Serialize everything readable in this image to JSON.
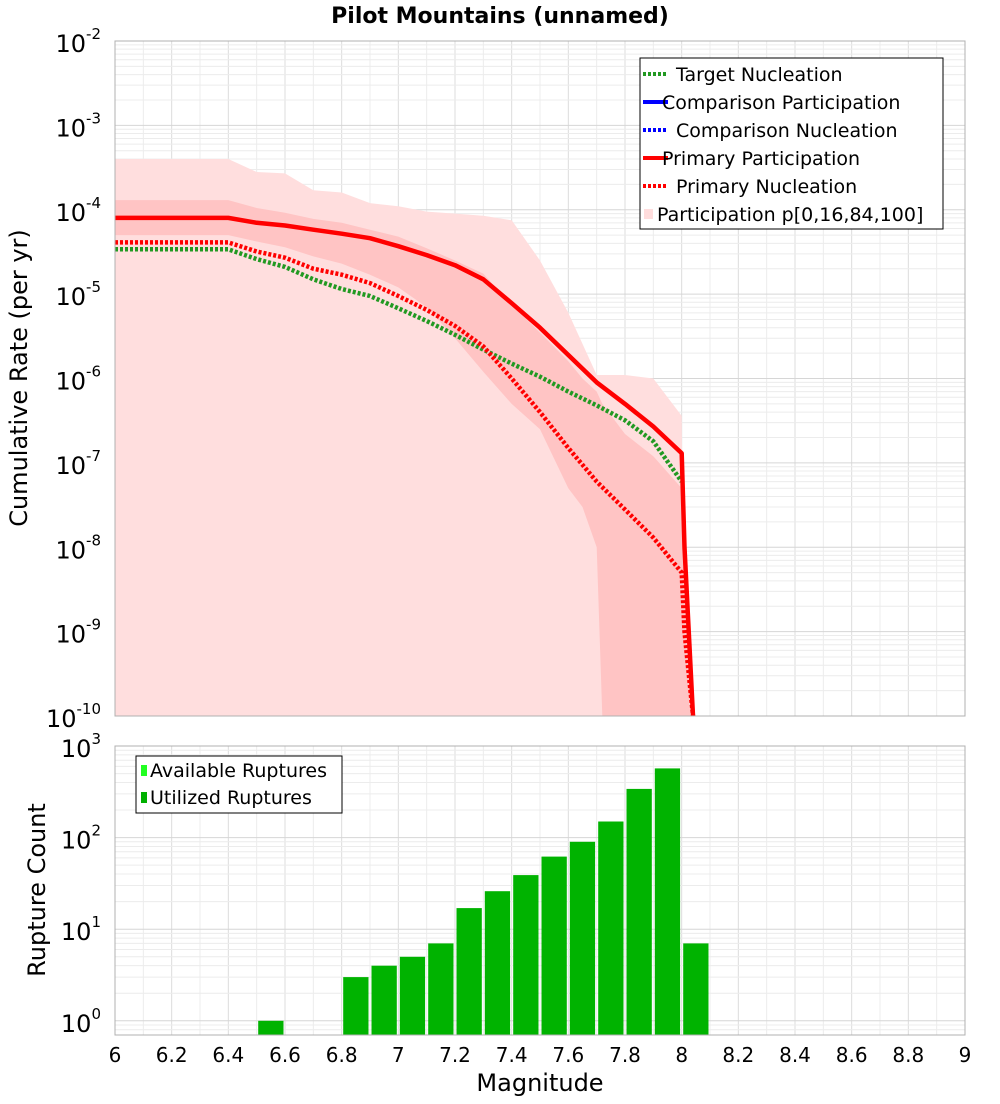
{
  "chart_data": [
    {
      "type": "line",
      "title": "Pilot Mountains (unnamed)",
      "xlabel": "",
      "ylabel": "Cumulative Rate (per yr)",
      "yscale": "log",
      "xlim": [
        6,
        9
      ],
      "ylim": [
        1e-10,
        0.01
      ],
      "y_ticks": [
        {
          "base": "10",
          "exp": "-10"
        },
        {
          "base": "10",
          "exp": "-9"
        },
        {
          "base": "10",
          "exp": "-8"
        },
        {
          "base": "10",
          "exp": "-7"
        },
        {
          "base": "10",
          "exp": "-6"
        },
        {
          "base": "10",
          "exp": "-5"
        },
        {
          "base": "10",
          "exp": "-4"
        },
        {
          "base": "10",
          "exp": "-3"
        },
        {
          "base": "10",
          "exp": "-2"
        }
      ],
      "legend": {
        "position": "top-right",
        "entries": [
          {
            "label": "Target Nucleation",
            "color": "#229922",
            "style": "dotted"
          },
          {
            "label": "Comparison Participation",
            "color": "#0000ff",
            "style": "solid"
          },
          {
            "label": "Comparison Nucleation",
            "color": "#0000ff",
            "style": "dotted"
          },
          {
            "label": "Primary Participation",
            "color": "#ff0000",
            "style": "solid"
          },
          {
            "label": "Primary Nucleation",
            "color": "#ff0000",
            "style": "dotted"
          },
          {
            "label": "Participation p[0,16,84,100]",
            "color": "#ffdddd",
            "style": "band"
          }
        ]
      },
      "bands": [
        {
          "name": "Participation p[0,100]",
          "color": "#ffdede",
          "x": [
            6.0,
            6.4,
            6.5,
            6.6,
            6.7,
            6.8,
            6.9,
            7.0,
            7.1,
            7.2,
            7.3,
            7.4,
            7.5,
            7.6,
            7.7,
            7.8,
            7.9,
            8.0,
            8.01,
            8.05
          ],
          "upper": [
            0.0004,
            0.0004,
            0.00028,
            0.00027,
            0.00017,
            0.00016,
            0.00012,
            0.00011,
            9.5e-05,
            9e-05,
            8.5e-05,
            7.5e-05,
            2.5e-05,
            6e-06,
            1.1e-06,
            1.1e-06,
            1e-06,
            3.6e-07,
            1e-10,
            1e-10
          ],
          "lower": [
            1e-10,
            1e-10,
            1e-10,
            1e-10,
            1e-10,
            1e-10,
            1e-10,
            1e-10,
            1e-10,
            1e-10,
            1e-10,
            1e-10,
            1e-10,
            1e-10,
            1e-10,
            1e-10,
            1e-10,
            1e-10,
            1e-10,
            1e-10
          ]
        },
        {
          "name": "Participation p[16,84]",
          "color": "#ffc4c4",
          "x": [
            6.0,
            6.4,
            6.5,
            6.6,
            6.7,
            6.8,
            6.9,
            7.0,
            7.1,
            7.2,
            7.3,
            7.4,
            7.5,
            7.6,
            7.65,
            7.7,
            7.72,
            7.8,
            7.9,
            8.0,
            8.03
          ],
          "upper": [
            0.00013,
            0.00013,
            0.000105,
            9.2e-05,
            7.8e-05,
            7e-05,
            5.8e-05,
            4.8e-05,
            3.5e-05,
            2.5e-05,
            1.75e-05,
            7.5e-06,
            3.5e-06,
            1.6e-06,
            1e-06,
            7e-07,
            5e-07,
            2.2e-07,
            1.2e-07,
            5e-08,
            1e-10
          ],
          "lower": [
            5e-05,
            5e-05,
            4.2e-05,
            3.6e-05,
            2.8e-05,
            2.3e-05,
            1.7e-05,
            1.2e-05,
            7e-06,
            3e-06,
            1.2e-06,
            5e-07,
            2.5e-07,
            5e-08,
            3e-08,
            1e-08,
            1e-10,
            1e-10,
            1e-10,
            1e-10,
            1e-10
          ]
        }
      ],
      "series": [
        {
          "name": "Primary Participation",
          "color": "#ff0000",
          "style": "solid",
          "x": [
            6.0,
            6.4,
            6.5,
            6.6,
            6.7,
            6.8,
            6.9,
            7.0,
            7.1,
            7.2,
            7.3,
            7.4,
            7.5,
            7.6,
            7.7,
            7.8,
            7.9,
            8.0,
            8.01,
            8.04
          ],
          "y": [
            8e-05,
            8e-05,
            7e-05,
            6.5e-05,
            5.8e-05,
            5.2e-05,
            4.6e-05,
            3.7e-05,
            2.9e-05,
            2.2e-05,
            1.5e-05,
            7.8e-06,
            4e-06,
            1.9e-06,
            9e-07,
            5e-07,
            2.7e-07,
            1.3e-07,
            1e-08,
            1e-10
          ]
        },
        {
          "name": "Primary Nucleation",
          "color": "#ff0000",
          "style": "dotted",
          "x": [
            6.0,
            6.4,
            6.5,
            6.6,
            6.7,
            6.8,
            6.9,
            7.0,
            7.1,
            7.2,
            7.3,
            7.4,
            7.5,
            7.6,
            7.7,
            7.8,
            7.9,
            8.0,
            8.01,
            8.04
          ],
          "y": [
            4.1e-05,
            4.1e-05,
            3.2e-05,
            2.7e-05,
            2e-05,
            1.7e-05,
            1.35e-05,
            9.5e-06,
            6.5e-06,
            4.2e-06,
            2.4e-06,
            1e-06,
            4e-07,
            1.5e-07,
            6e-08,
            2.8e-08,
            1.3e-08,
            5e-09,
            1e-09,
            1e-10
          ]
        },
        {
          "name": "Target Nucleation",
          "color": "#229922",
          "style": "dotted",
          "x": [
            6.0,
            6.4,
            6.5,
            6.6,
            6.7,
            6.8,
            6.9,
            7.0,
            7.1,
            7.2,
            7.3,
            7.4,
            7.5,
            7.6,
            7.7,
            7.8,
            7.9,
            8.0
          ],
          "y": [
            3.4e-05,
            3.4e-05,
            2.6e-05,
            2.1e-05,
            1.5e-05,
            1.15e-05,
            9.5e-06,
            6.8e-06,
            4.8e-06,
            3.3e-06,
            2.2e-06,
            1.5e-06,
            1.05e-06,
            7e-07,
            4.8e-07,
            3.2e-07,
            1.8e-07,
            6e-08
          ]
        }
      ]
    },
    {
      "type": "bar",
      "title": "",
      "xlabel": "Magnitude",
      "ylabel": "Rupture Count",
      "yscale": "log",
      "xlim": [
        6,
        9
      ],
      "ylim": [
        0.7,
        1000
      ],
      "x_ticks": [
        "6",
        "6.2",
        "6.4",
        "6.6",
        "6.8",
        "7",
        "7.2",
        "7.4",
        "7.6",
        "7.8",
        "8",
        "8.2",
        "8.4",
        "8.6",
        "8.8",
        "9"
      ],
      "y_ticks": [
        {
          "base": "10",
          "exp": "0"
        },
        {
          "base": "10",
          "exp": "1"
        },
        {
          "base": "10",
          "exp": "2"
        },
        {
          "base": "10",
          "exp": "3"
        }
      ],
      "bar_width": 0.1,
      "legend": {
        "position": "top-left",
        "entries": [
          {
            "label": "Available Ruptures",
            "color": "#22ff22"
          },
          {
            "label": "Utilized Ruptures",
            "color": "#00b000"
          }
        ]
      },
      "series": [
        {
          "name": "Utilized Ruptures",
          "color": "#00b300",
          "x": [
            6.55,
            6.85,
            6.95,
            7.05,
            7.15,
            7.25,
            7.35,
            7.45,
            7.55,
            7.65,
            7.75,
            7.85,
            7.95,
            8.05
          ],
          "values": [
            1,
            3,
            4,
            5,
            7,
            17,
            26,
            39,
            62,
            90,
            150,
            340,
            570,
            7
          ]
        }
      ]
    }
  ]
}
